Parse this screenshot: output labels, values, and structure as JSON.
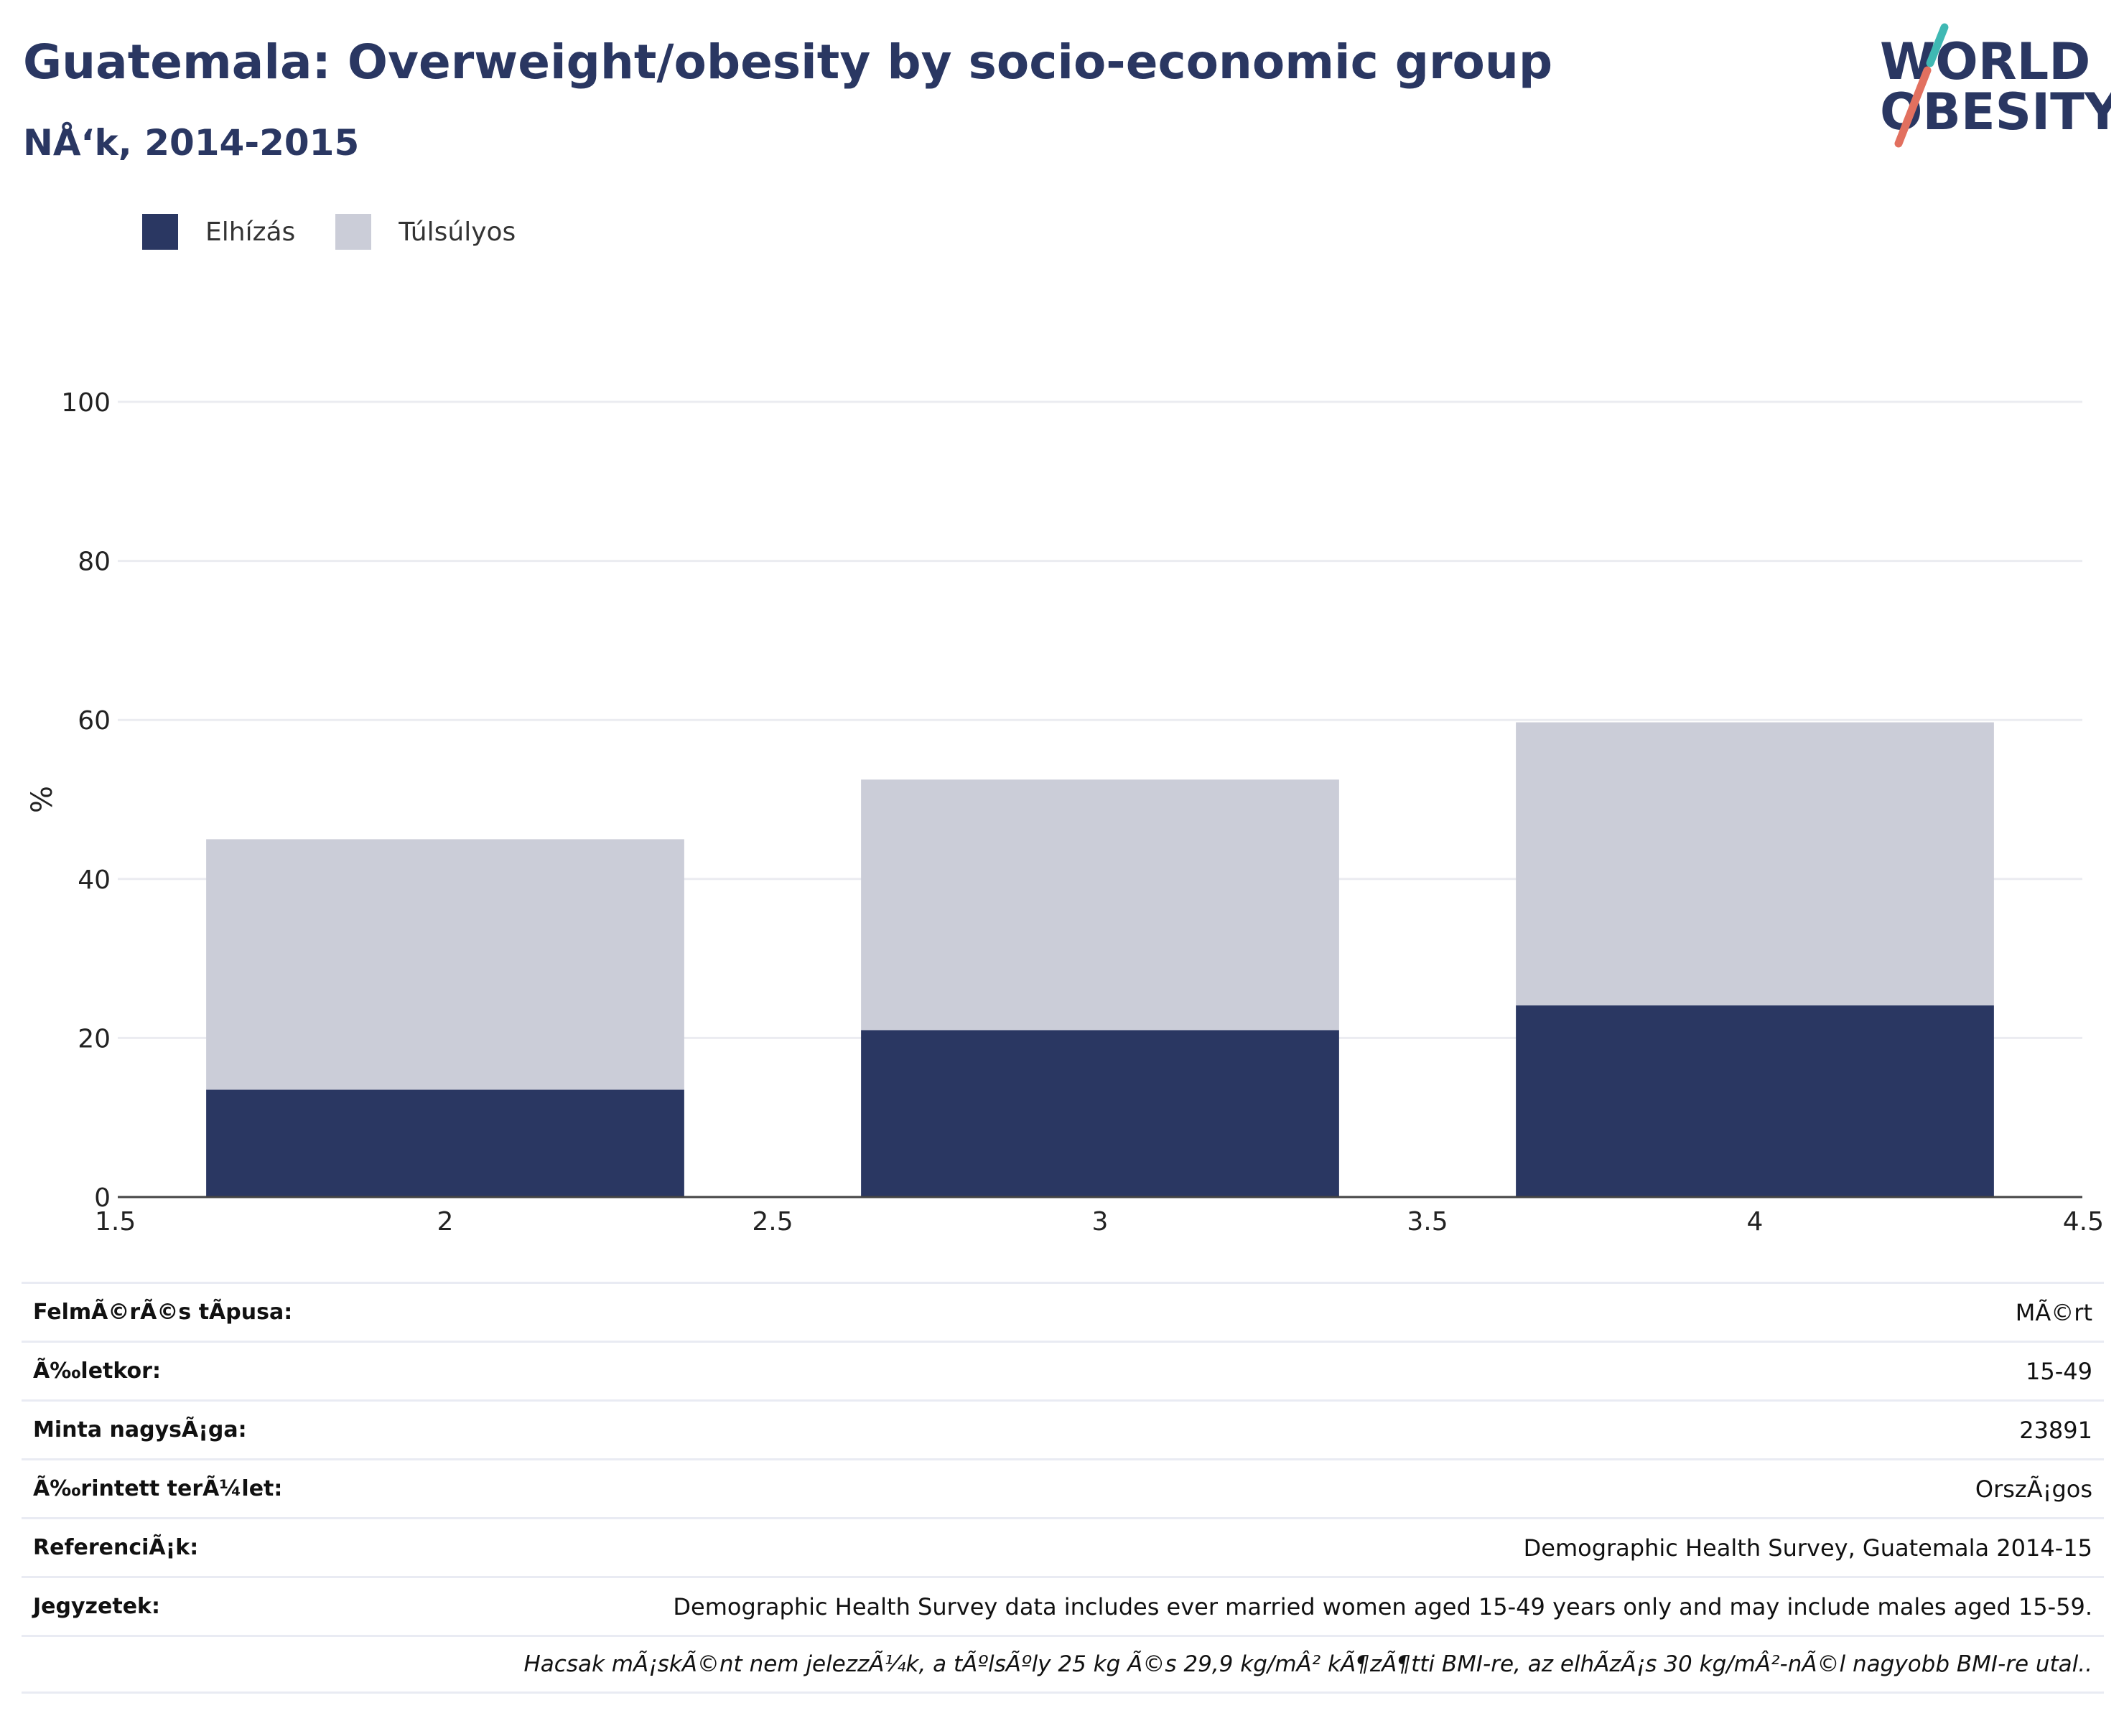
{
  "header": {
    "title": "Guatemala: Overweight/obesity by socio-economic group",
    "subtitle": "NÅ‘k, 2014-2015"
  },
  "logo": {
    "line1": "WORLD",
    "line2": "OBESITY"
  },
  "legend": {
    "items": [
      {
        "label": "Elhízás",
        "color": "#2a3762"
      },
      {
        "label": "Túlsúlyos",
        "color": "#cbcdd8"
      }
    ]
  },
  "chart_data": {
    "type": "bar",
    "stacked": true,
    "x": [
      2,
      3,
      4
    ],
    "series": [
      {
        "name": "Elhízás",
        "color": "#2a3762",
        "values": [
          13.5,
          21,
          24.1
        ]
      },
      {
        "name": "Túlsúlyos",
        "color": "#cbcdd8",
        "values": [
          31.5,
          31.5,
          35.6
        ]
      }
    ],
    "xlim": [
      1.5,
      4.5
    ],
    "xticks": [
      "1.5",
      "2",
      "2.5",
      "3",
      "3.5",
      "4",
      "4.5"
    ],
    "ylim": [
      0,
      100
    ],
    "yticks": [
      "0",
      "20",
      "40",
      "60",
      "80",
      "100"
    ],
    "ylabel": "%",
    "grid": true,
    "legend_position": "top-left"
  },
  "meta": {
    "rows": [
      {
        "key": "FelmÃ©rÃ©s tÃpusa:",
        "value": "MÃ©rt"
      },
      {
        "key": "Ã‰letkor:",
        "value": "15-49"
      },
      {
        "key": "Minta nagysÃ¡ga:",
        "value": "23891"
      },
      {
        "key": "Ã‰rintett terÃ¼let:",
        "value": "OrszÃ¡gos"
      },
      {
        "key": "ReferenciÃ¡k:",
        "value": "Demographic Health Survey, Guatemala 2014-15"
      },
      {
        "key": "Jegyzetek:",
        "value": "Demographic Health Survey data includes ever married women aged 15-49 years only and may include males aged 15-59."
      }
    ],
    "note": "Hacsak mÃ¡skÃ©nt nem jelezzÃ¼k, a tÃºlsÃºly 25 kg Ã©s 29,9 kg/mÂ² kÃ¶zÃ¶tti BMI-re, az elhÃzÃ¡s 30 kg/mÂ²-nÃ©l nagyobb BMI-re utal.."
  }
}
